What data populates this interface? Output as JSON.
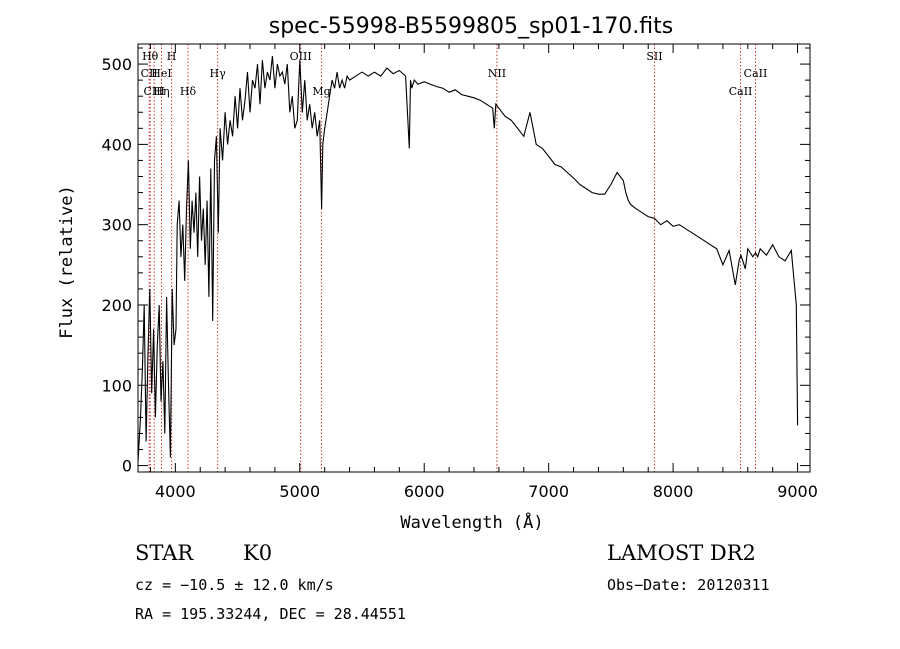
{
  "chart_data": {
    "type": "line",
    "title": "spec-55998-B5599805_sp01-170.fits",
    "xlabel": "Wavelength (Å)",
    "ylabel": "Flux (relative)",
    "xlim": [
      3700,
      9100
    ],
    "ylim": [
      -8,
      525
    ],
    "xticks": [
      4000,
      5000,
      6000,
      7000,
      8000,
      9000
    ],
    "yticks": [
      0,
      100,
      200,
      300,
      400,
      500
    ],
    "grid": false,
    "legend": "none",
    "colors": {
      "spectrum": "#000000",
      "lines": "#cc3333"
    },
    "spectral_lines": [
      {
        "label": "Hθ",
        "x": 3798,
        "row": 0
      },
      {
        "label": "H",
        "x": 3970,
        "row": 0
      },
      {
        "label": "CII",
        "x": 3790,
        "row": 1
      },
      {
        "label": "HeI",
        "x": 3889,
        "row": 1
      },
      {
        "label": "CIII",
        "x": 3830,
        "row": 2
      },
      {
        "label": "Hη",
        "x": 3889,
        "row": 2
      },
      {
        "label": "Hδ",
        "x": 4102,
        "row": 2
      },
      {
        "label": "Hγ",
        "x": 4340,
        "row": 1
      },
      {
        "label": "OIII",
        "x": 5007,
        "row": 0
      },
      {
        "label": "Mg",
        "x": 5175,
        "row": 2
      },
      {
        "label": "NII",
        "x": 6584,
        "row": 1
      },
      {
        "label": "SII",
        "x": 7850,
        "row": 0
      },
      {
        "label": "CaII",
        "x": 8542,
        "row": 2
      },
      {
        "label": "CaII",
        "x": 8662,
        "row": 1
      }
    ],
    "series": [
      {
        "x": [
          3700,
          3720,
          3735,
          3750,
          3765,
          3780,
          3795,
          3810,
          3825,
          3840,
          3855,
          3870,
          3885,
          3900,
          3915,
          3930,
          3945,
          3960,
          3975,
          3990,
          4005,
          4015,
          4030,
          4045,
          4060,
          4075,
          4090,
          4105,
          4120,
          4135,
          4150,
          4165,
          4180,
          4195,
          4210,
          4225,
          4240,
          4255,
          4270,
          4285,
          4300,
          4315,
          4330,
          4345,
          4360,
          4380,
          4400,
          4420,
          4440,
          4460,
          4480,
          4500,
          4520,
          4540,
          4560,
          4580,
          4600,
          4620,
          4640,
          4660,
          4680,
          4700,
          4720,
          4740,
          4760,
          4780,
          4800,
          4820,
          4840,
          4860,
          4880,
          4900,
          4920,
          4940,
          4960,
          4980,
          5000,
          5020,
          5040,
          5060,
          5080,
          5100,
          5120,
          5140,
          5160,
          5175,
          5185,
          5200,
          5220,
          5240,
          5260,
          5280,
          5300,
          5320,
          5340,
          5360,
          5380,
          5400,
          5450,
          5500,
          5550,
          5600,
          5650,
          5700,
          5750,
          5800,
          5850,
          5880,
          5890,
          5900,
          5920,
          5950,
          6000,
          6050,
          6100,
          6150,
          6200,
          6250,
          6300,
          6350,
          6400,
          6450,
          6500,
          6550,
          6563,
          6575,
          6600,
          6650,
          6700,
          6750,
          6800,
          6850,
          6900,
          6950,
          7000,
          7050,
          7100,
          7150,
          7200,
          7250,
          7300,
          7350,
          7400,
          7450,
          7500,
          7550,
          7600,
          7620,
          7640,
          7660,
          7700,
          7750,
          7800,
          7850,
          7900,
          7950,
          8000,
          8050,
          8100,
          8150,
          8200,
          8250,
          8300,
          8350,
          8400,
          8450,
          8500,
          8530,
          8545,
          8560,
          8580,
          8600,
          8640,
          8662,
          8680,
          8700,
          8750,
          8800,
          8850,
          8900,
          8950,
          8990,
          9000
        ],
        "values": [
          5,
          60,
          120,
          200,
          30,
          140,
          220,
          90,
          170,
          60,
          150,
          200,
          80,
          130,
          40,
          210,
          100,
          10,
          220,
          150,
          170,
          300,
          330,
          260,
          300,
          230,
          320,
          380,
          270,
          330,
          290,
          340,
          260,
          360,
          280,
          320,
          250,
          330,
          210,
          370,
          180,
          380,
          410,
          290,
          420,
          380,
          440,
          400,
          430,
          410,
          460,
          420,
          470,
          430,
          455,
          490,
          440,
          480,
          470,
          500,
          450,
          505,
          470,
          490,
          480,
          510,
          470,
          500,
          485,
          490,
          475,
          500,
          440,
          460,
          420,
          430,
          505,
          440,
          480,
          430,
          450,
          420,
          440,
          410,
          430,
          320,
          400,
          420,
          440,
          460,
          480,
          470,
          490,
          470,
          480,
          470,
          485,
          480,
          485,
          490,
          485,
          490,
          485,
          495,
          488,
          492,
          485,
          395,
          480,
          470,
          480,
          475,
          478,
          475,
          472,
          470,
          465,
          468,
          462,
          460,
          458,
          455,
          450,
          445,
          420,
          450,
          445,
          435,
          430,
          420,
          410,
          440,
          400,
          395,
          385,
          375,
          372,
          365,
          358,
          350,
          345,
          340,
          338,
          338,
          350,
          365,
          355,
          340,
          330,
          325,
          320,
          315,
          310,
          308,
          300,
          305,
          298,
          300,
          295,
          290,
          285,
          280,
          275,
          270,
          250,
          268,
          225,
          255,
          262,
          255,
          245,
          270,
          260,
          265,
          260,
          270,
          262,
          275,
          260,
          255,
          268,
          200,
          50
        ]
      }
    ]
  },
  "info": {
    "class_type": "STAR",
    "subclass": "K0",
    "survey": "LAMOST DR2",
    "cz": "cz = −10.5 ± 12.0 km/s",
    "obs_date": "Obs−Date: 20120311",
    "radec": "RA = 195.33244, DEC =  28.44551"
  }
}
